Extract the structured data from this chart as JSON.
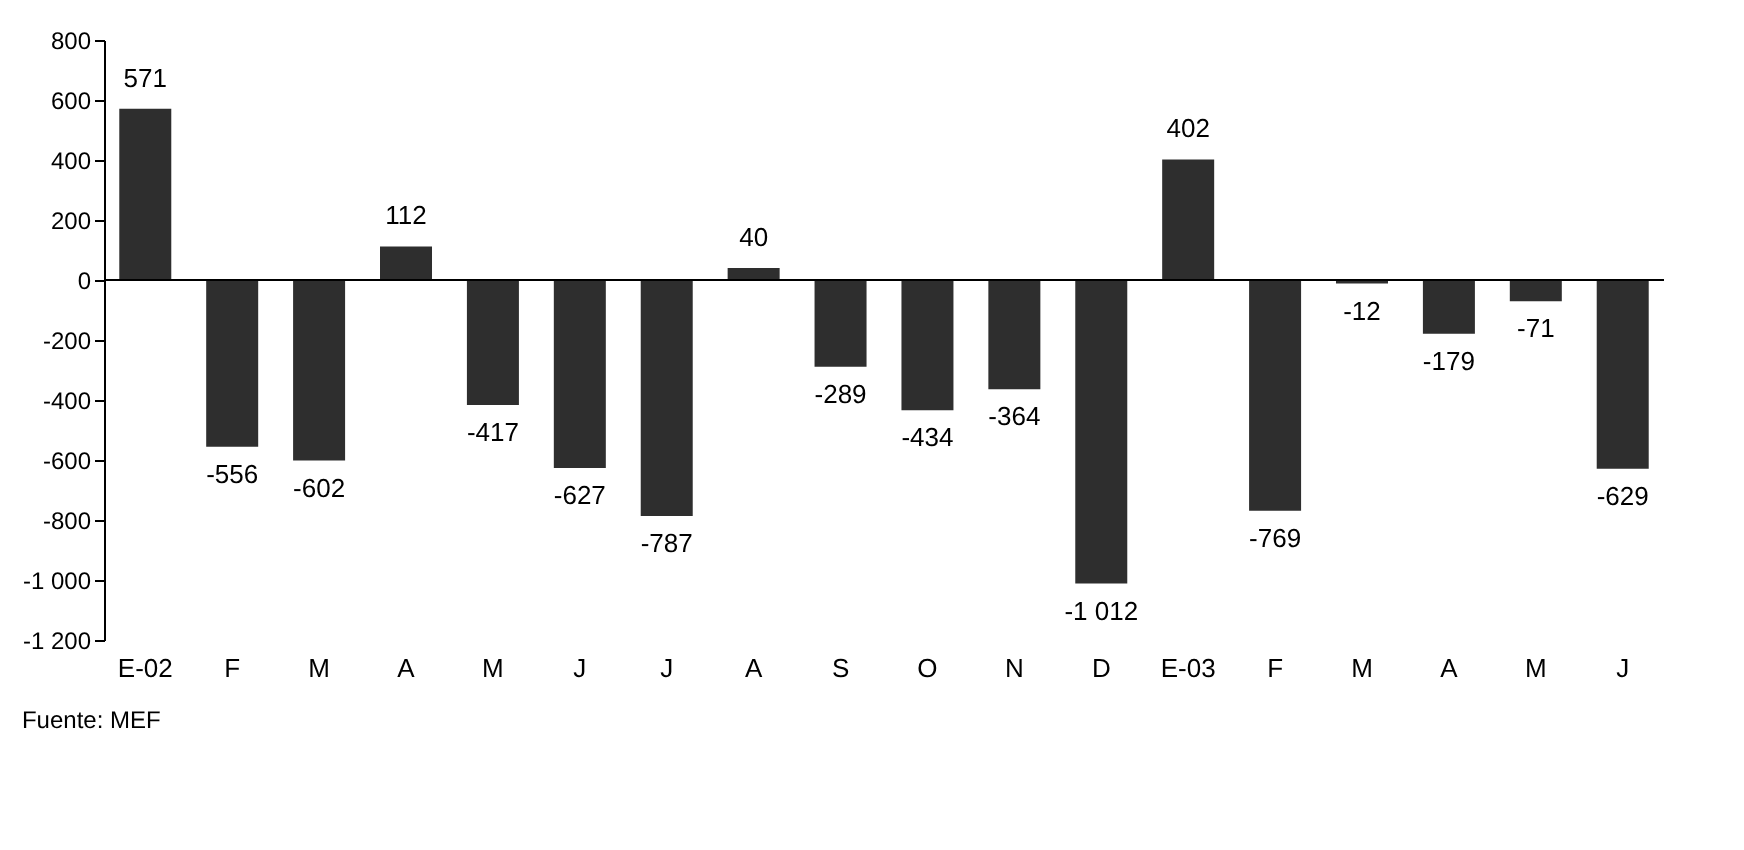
{
  "chart_data": {
    "type": "bar",
    "categories": [
      "E-02",
      "F",
      "M",
      "A",
      "M",
      "J",
      "J",
      "A",
      "S",
      "O",
      "N",
      "D",
      "E-03",
      "F",
      "M",
      "A",
      "M",
      "J"
    ],
    "values": [
      571,
      -556,
      -602,
      112,
      -417,
      -627,
      -787,
      40,
      -289,
      -434,
      -364,
      -1012,
      402,
      -769,
      -12,
      -179,
      -71,
      -629
    ],
    "value_labels": [
      "571",
      "-556",
      "-602",
      "112",
      "-417",
      "-627",
      "-787",
      "40",
      "-289",
      "-434",
      "-364",
      "-1 012",
      "402",
      "-769",
      "-12",
      "-179",
      "-71",
      "-629"
    ],
    "color": "#2e2e2e",
    "ylim": [
      -1200,
      800
    ],
    "yticks": [
      {
        "value": -1200,
        "label": "-1 200"
      },
      {
        "value": -1000,
        "label": "-1 000"
      },
      -800,
      -600,
      -400,
      -200,
      0,
      200,
      400,
      600,
      800
    ],
    "ref_lines": [
      {
        "axis": "y",
        "value": 0,
        "color": "#000000"
      }
    ],
    "grid": false,
    "annotations": [
      "Fuente: MEF"
    ]
  }
}
